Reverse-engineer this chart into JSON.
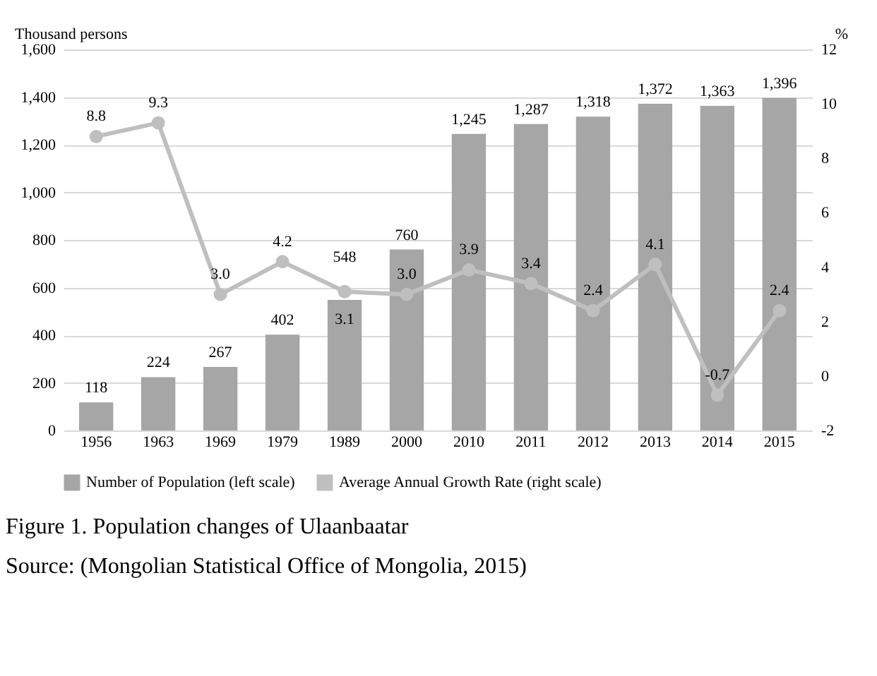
{
  "chart_data": {
    "type": "bar",
    "ylabel": "Thousand persons",
    "y2label": "%",
    "categories": [
      "1956",
      "1963",
      "1969",
      "1979",
      "1989",
      "2000",
      "2010",
      "2011",
      "2012",
      "2013",
      "2014",
      "2015"
    ],
    "series": [
      {
        "name": "Number of Population  (left scale)",
        "type": "bar",
        "color": "#a6a6a6",
        "values": [
          118,
          224,
          267,
          402,
          548,
          760,
          1245,
          1287,
          1318,
          1372,
          1363,
          1396
        ],
        "value_labels": [
          "118",
          "224",
          "267",
          "402",
          "548",
          "760",
          "1,245",
          "1,287",
          "1,318",
          "1,372",
          "1,363",
          "1,396"
        ]
      },
      {
        "name": "Average Annual Growth Rate (right scale)",
        "type": "line",
        "axis": "y2",
        "color": "#bfbfbf",
        "marker": "circle",
        "values": [
          8.8,
          9.3,
          3.0,
          4.2,
          3.1,
          3.0,
          3.9,
          3.4,
          2.4,
          4.1,
          -0.7,
          2.4
        ],
        "value_labels": [
          "8.8",
          "9.3",
          "3.0",
          "4.2",
          "3.1",
          "3.0",
          "3.9",
          "3.4",
          "2.4",
          "4.1",
          "-0.7",
          "2.4"
        ]
      }
    ],
    "ylim": [
      0,
      1600
    ],
    "yticks": [
      {
        "value": 0,
        "label": "0"
      },
      {
        "value": 200,
        "label": "200"
      },
      {
        "value": 400,
        "label": "400"
      },
      {
        "value": 600,
        "label": "600"
      },
      {
        "value": 800,
        "label": "800"
      },
      {
        "value": 1000,
        "label": "1,000"
      },
      {
        "value": 1200,
        "label": "1,200"
      },
      {
        "value": 1400,
        "label": "1,400"
      },
      {
        "value": 1600,
        "label": "1,600"
      }
    ],
    "y2lim": [
      -2,
      12
    ],
    "y2ticks": [
      -2,
      0,
      2,
      4,
      6,
      8,
      10,
      12
    ],
    "grid": "y",
    "legend": "bottom",
    "annotations": [
      "Figure 1. Population changes of Ulaanbaatar",
      "Source: (Mongolian Statistical Office of Mongolia, 2015)"
    ]
  }
}
